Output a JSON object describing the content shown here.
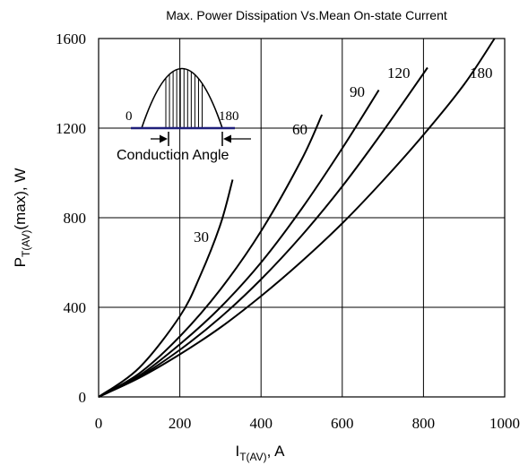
{
  "chart_data": {
    "type": "line",
    "title": "Max. Power Dissipation Vs.Mean On-state Current",
    "xlabel": {
      "main": "I",
      "sub": "T(AV)",
      "unit": ",  A"
    },
    "ylabel": {
      "main": "P",
      "sub": "T(AV)",
      "rest": "(max),  W"
    },
    "xlim": [
      0,
      1000
    ],
    "ylim": [
      0,
      1600
    ],
    "x_ticks": [
      0,
      200,
      400,
      600,
      800,
      1000
    ],
    "y_ticks": [
      0,
      400,
      800,
      1200,
      1600
    ],
    "x_tick_labels": [
      "0",
      "200",
      "400",
      "600",
      "800",
      "1000"
    ],
    "y_tick_labels": [
      "0",
      "400",
      "800",
      "1200",
      "1600"
    ],
    "grid": true,
    "series": [
      {
        "name": "30",
        "x": [
          0,
          100,
          200,
          250,
          300,
          330
        ],
        "y": [
          0,
          130,
          360,
          540,
          770,
          970
        ]
      },
      {
        "name": "60",
        "x": [
          0,
          100,
          200,
          300,
          400,
          500,
          550
        ],
        "y": [
          0,
          105,
          270,
          480,
          740,
          1060,
          1260
        ]
      },
      {
        "name": "90",
        "x": [
          0,
          100,
          200,
          300,
          400,
          500,
          600,
          690
        ],
        "y": [
          0,
          95,
          235,
          400,
          600,
          840,
          1110,
          1370
        ]
      },
      {
        "name": "120",
        "x": [
          0,
          100,
          200,
          300,
          400,
          500,
          600,
          700,
          810
        ],
        "y": [
          0,
          90,
          210,
          355,
          525,
          720,
          940,
          1185,
          1470
        ]
      },
      {
        "name": "180",
        "x": [
          0,
          100,
          200,
          300,
          400,
          500,
          600,
          700,
          800,
          900,
          975
        ],
        "y": [
          0,
          85,
          190,
          310,
          450,
          605,
          775,
          965,
          1170,
          1395,
          1600
        ]
      }
    ],
    "annotations": {
      "inset_start": "0",
      "inset_end": "180",
      "inset_caption": "Conduction Angle"
    }
  }
}
